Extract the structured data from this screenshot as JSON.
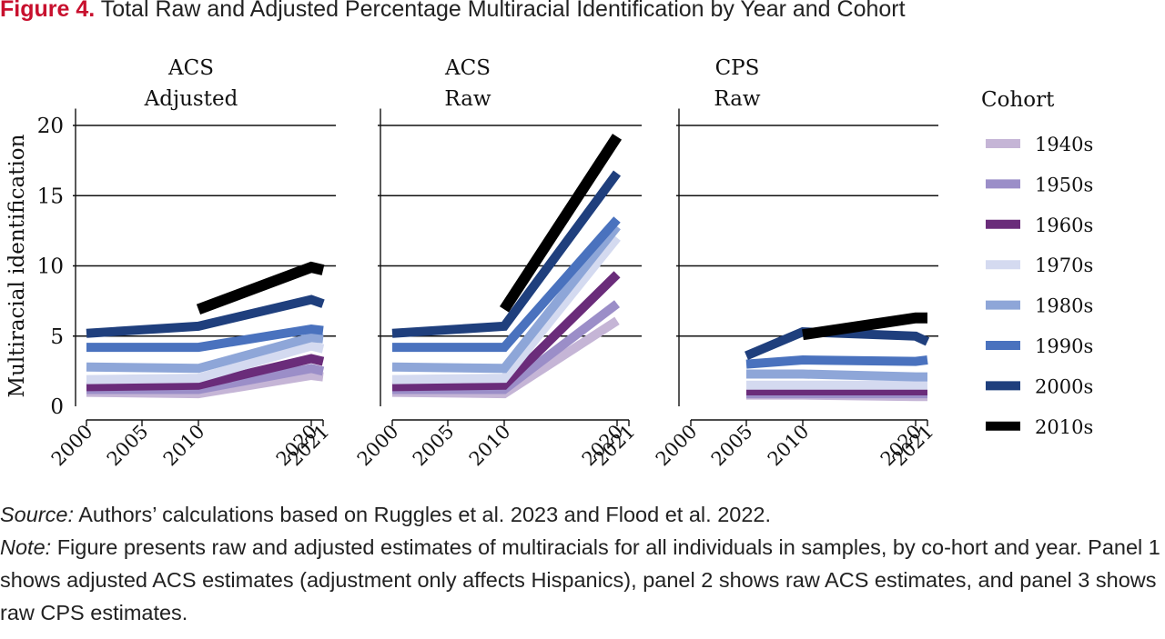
{
  "figure": {
    "label": "Figure 4.",
    "title": "Total Raw and Adjusted Percentage Multiracial Identification by Year and Cohort"
  },
  "chart_data": {
    "type": "line",
    "ylabel": "Multiracial identification",
    "ylim": [
      0,
      20
    ],
    "yticks": [
      "0",
      "5",
      "10",
      "15",
      "20"
    ],
    "xticks": [
      "2000",
      "2005",
      "2010",
      "2020",
      "2021"
    ],
    "grid": "horizontal",
    "legend": {
      "title": "Cohort",
      "placement": "right",
      "entries": [
        {
          "name": "1940s",
          "color": "#c5b5d6"
        },
        {
          "name": "1950s",
          "color": "#9b8ec8"
        },
        {
          "name": "1960s",
          "color": "#6a2c7a"
        },
        {
          "name": "1970s",
          "color": "#d4daf0"
        },
        {
          "name": "1980s",
          "color": "#8ea6d8"
        },
        {
          "name": "1990s",
          "color": "#4a72be"
        },
        {
          "name": "2000s",
          "color": "#1f3f7d"
        },
        {
          "name": "2010s",
          "color": "#000000"
        }
      ]
    },
    "panels": [
      {
        "title_line1": "ACS",
        "title_line2": "Adjusted",
        "series": [
          {
            "name": "1940s",
            "x": [
              2000,
              2010,
              2020,
              2021
            ],
            "y": [
              1.0,
              0.9,
              2.2,
              2.1
            ]
          },
          {
            "name": "1950s",
            "x": [
              2000,
              2010,
              2020,
              2021
            ],
            "y": [
              1.2,
              1.2,
              2.7,
              2.5
            ]
          },
          {
            "name": "1960s",
            "x": [
              2000,
              2010,
              2020,
              2021
            ],
            "y": [
              1.4,
              1.5,
              3.4,
              3.2
            ]
          },
          {
            "name": "1970s",
            "x": [
              2000,
              2010,
              2020,
              2021
            ],
            "y": [
              1.9,
              2.0,
              4.3,
              4.1
            ]
          },
          {
            "name": "1980s",
            "x": [
              2000,
              2010,
              2020,
              2021
            ],
            "y": [
              2.8,
              2.7,
              4.9,
              4.8
            ]
          },
          {
            "name": "1990s",
            "x": [
              2000,
              2010,
              2020,
              2021
            ],
            "y": [
              4.2,
              4.2,
              5.5,
              5.4
            ]
          },
          {
            "name": "2000s",
            "x": [
              2000,
              2010,
              2020,
              2021
            ],
            "y": [
              5.2,
              5.7,
              7.6,
              7.3
            ]
          },
          {
            "name": "2010s",
            "x": [
              2010,
              2020,
              2021
            ],
            "y": [
              6.9,
              9.9,
              9.7
            ]
          }
        ]
      },
      {
        "title_line1": "ACS",
        "title_line2": "Raw",
        "series": [
          {
            "name": "1940s",
            "x": [
              2000,
              2010,
              2020
            ],
            "y": [
              1.0,
              0.9,
              6.1
            ]
          },
          {
            "name": "1950s",
            "x": [
              2000,
              2010,
              2020
            ],
            "y": [
              1.2,
              1.2,
              7.3
            ]
          },
          {
            "name": "1960s",
            "x": [
              2000,
              2010,
              2020
            ],
            "y": [
              1.4,
              1.5,
              9.4
            ]
          },
          {
            "name": "1970s",
            "x": [
              2000,
              2010,
              2020
            ],
            "y": [
              1.9,
              2.0,
              12.0
            ]
          },
          {
            "name": "1980s",
            "x": [
              2000,
              2010,
              2020
            ],
            "y": [
              2.8,
              2.7,
              12.8
            ]
          },
          {
            "name": "1990s",
            "x": [
              2000,
              2010,
              2020
            ],
            "y": [
              4.2,
              4.2,
              13.3
            ]
          },
          {
            "name": "2000s",
            "x": [
              2000,
              2010,
              2020
            ],
            "y": [
              5.2,
              5.7,
              16.6
            ]
          },
          {
            "name": "2010s",
            "x": [
              2010,
              2020
            ],
            "y": [
              6.9,
              19.2
            ]
          }
        ]
      },
      {
        "title_line1": "CPS",
        "title_line2": "Raw",
        "series": [
          {
            "name": "1940s",
            "x": [
              2005,
              2010,
              2020,
              2021
            ],
            "y": [
              0.8,
              0.8,
              0.7,
              0.7
            ]
          },
          {
            "name": "1950s",
            "x": [
              2005,
              2010,
              2020,
              2021
            ],
            "y": [
              0.9,
              0.9,
              0.9,
              0.9
            ]
          },
          {
            "name": "1960s",
            "x": [
              2005,
              2010,
              2020,
              2021
            ],
            "y": [
              1.1,
              1.1,
              1.1,
              1.1
            ]
          },
          {
            "name": "1970s",
            "x": [
              2005,
              2010,
              2020,
              2021
            ],
            "y": [
              1.5,
              1.5,
              1.5,
              1.5
            ]
          },
          {
            "name": "1980s",
            "x": [
              2005,
              2010,
              2020,
              2021
            ],
            "y": [
              2.3,
              2.3,
              2.1,
              2.1
            ]
          },
          {
            "name": "1990s",
            "x": [
              2005,
              2010,
              2020,
              2021
            ],
            "y": [
              3.0,
              3.3,
              3.2,
              3.3
            ]
          },
          {
            "name": "2000s",
            "x": [
              2005,
              2010,
              2020,
              2021
            ],
            "y": [
              3.6,
              5.3,
              5.0,
              4.6
            ]
          },
          {
            "name": "2010s",
            "x": [
              2010,
              2020,
              2021
            ],
            "y": [
              5.1,
              6.3,
              6.3
            ]
          }
        ]
      }
    ]
  },
  "source": {
    "label": "Source:",
    "text": " Authors’ calculations based on Ruggles et al. 2023 and Flood et al. 2022."
  },
  "note": {
    "label": "Note:",
    "text": " Figure presents raw and adjusted estimates of multiracials for all individuals in samples, by co-hort and year. Panel 1 shows adjusted ACS estimates (adjustment only affects Hispanics), panel 2 shows raw ACS estimates, and panel 3 shows raw CPS estimates."
  }
}
